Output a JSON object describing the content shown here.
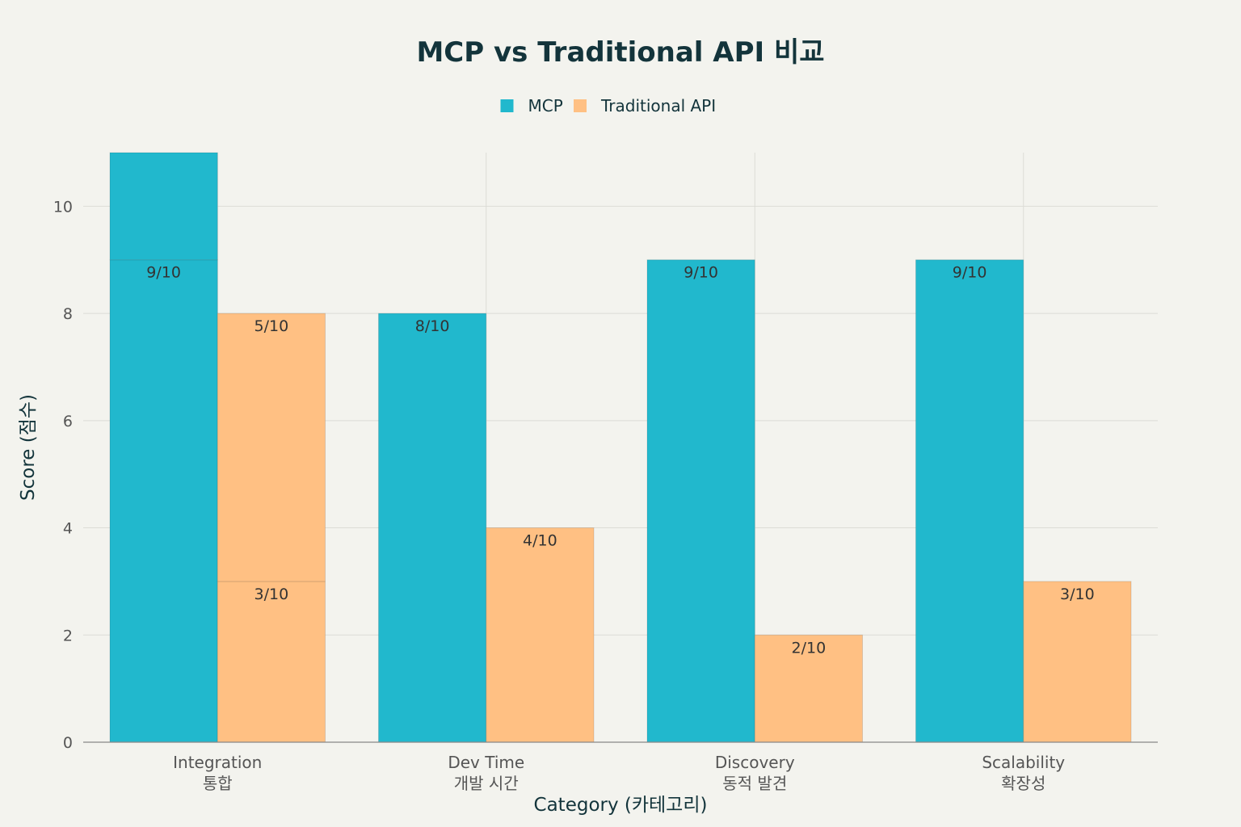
{
  "chart_data": {
    "type": "bar",
    "title": "MCP vs Traditional API 비교",
    "xlabel": "Category (카테고리)",
    "ylabel": "Score (점수)",
    "ylim": [
      0,
      11
    ],
    "yticks": [
      0,
      2,
      4,
      6,
      8,
      10
    ],
    "legend_position": "top-center",
    "grid": true,
    "categories": [
      [
        "Integration",
        "통합"
      ],
      [
        "Dev Time",
        "개발 시간"
      ],
      [
        "Discovery",
        "동적 발견"
      ],
      [
        "Scalability",
        "확장성"
      ]
    ],
    "series": [
      {
        "name": "MCP",
        "color": "#21b8cd",
        "segments": [
          [
            {
              "value": 9,
              "label": "9/10"
            },
            {
              "value": 2,
              "label": ""
            }
          ],
          [
            {
              "value": 8,
              "label": "8/10"
            }
          ],
          [
            {
              "value": 9,
              "label": "9/10"
            }
          ],
          [
            {
              "value": 9,
              "label": "9/10"
            }
          ]
        ]
      },
      {
        "name": "Traditional API",
        "color": "#ffc083",
        "segments": [
          [
            {
              "value": 3,
              "label": "3/10"
            },
            {
              "value": 5,
              "label": "5/10"
            }
          ],
          [
            {
              "value": 4,
              "label": "4/10"
            }
          ],
          [
            {
              "value": 2,
              "label": "2/10"
            }
          ],
          [
            {
              "value": 3,
              "label": "3/10"
            }
          ]
        ]
      }
    ]
  }
}
